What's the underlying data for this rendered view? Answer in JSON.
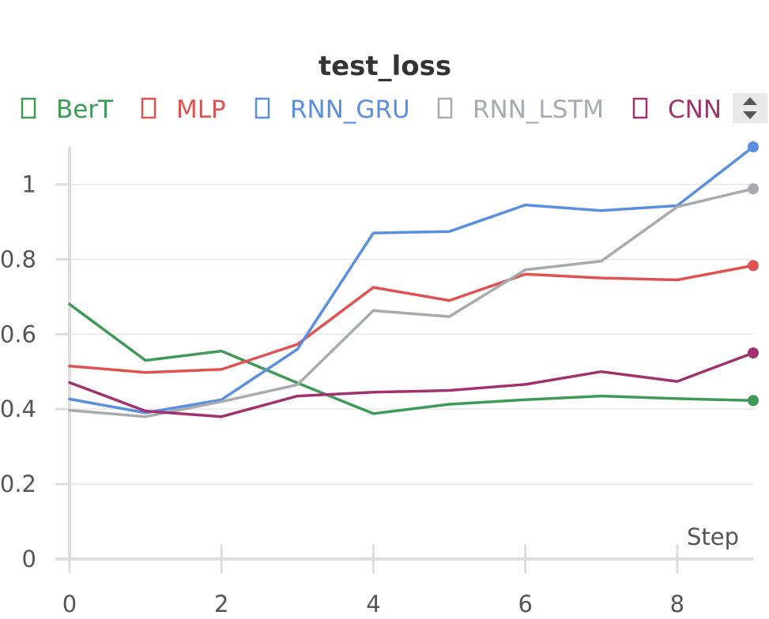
{
  "chart_data": {
    "type": "line",
    "title": "test_loss",
    "xlabel": "Step",
    "ylabel": "",
    "xlim": [
      0,
      9
    ],
    "ylim": [
      0,
      1.1
    ],
    "x_ticks": [
      "0",
      "2",
      "4",
      "6",
      "8"
    ],
    "y_ticks": [
      "0",
      "0.2",
      "0.4",
      "0.6",
      "0.8",
      "1"
    ],
    "grid": true,
    "legend_position": "top",
    "x": [
      0,
      1,
      2,
      3,
      4,
      5,
      6,
      7,
      8,
      9
    ],
    "series": [
      {
        "name": "BerT",
        "color": "#3f9a57",
        "values": [
          0.68,
          0.53,
          0.555,
          0.47,
          0.388,
          0.413,
          0.425,
          0.435,
          0.428,
          0.423
        ]
      },
      {
        "name": "MLP",
        "color": "#e05252",
        "values": [
          0.515,
          0.498,
          0.506,
          0.573,
          0.725,
          0.69,
          0.76,
          0.75,
          0.745,
          0.783
        ]
      },
      {
        "name": "RNN_GRU",
        "color": "#5a8fe0",
        "values": [
          0.427,
          0.39,
          0.425,
          0.56,
          0.87,
          0.874,
          0.945,
          0.93,
          0.943,
          1.1
        ]
      },
      {
        "name": "RNN_LSTM",
        "color": "#a7aaae",
        "values": [
          0.397,
          0.38,
          0.42,
          0.465,
          0.663,
          0.647,
          0.772,
          0.795,
          0.94,
          0.988
        ]
      },
      {
        "name": "CNN",
        "color": "#a0336e",
        "values": [
          0.471,
          0.395,
          0.38,
          0.435,
          0.445,
          0.45,
          0.466,
          0.5,
          0.474,
          0.55
        ]
      }
    ]
  }
}
